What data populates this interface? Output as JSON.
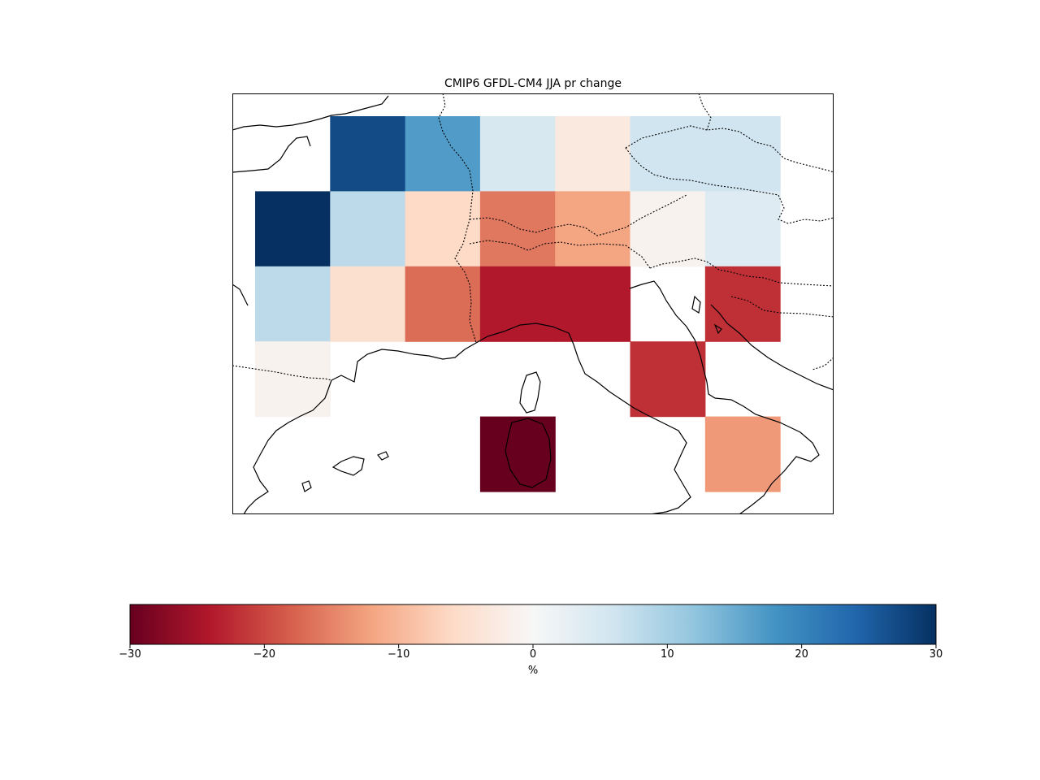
{
  "chart_data": {
    "type": "heatmap",
    "title": "CMIP6 GFDL-CM4 JJA pr change",
    "colorbar": {
      "label": "%",
      "vmin": -30,
      "vmax": 30,
      "ticks": [
        -30,
        -20,
        -10,
        0,
        10,
        20,
        30
      ],
      "tick_labels": [
        "−30",
        "−20",
        "−10",
        "0",
        "10",
        "20",
        "30"
      ],
      "colormap": "RdBu",
      "orientation": "horizontal",
      "placement": "bottom"
    },
    "grid_note": "7 columns x 5 rows (rows top to bottom); null = no data",
    "cells": [
      [
        null,
        27,
        17,
        5,
        -3,
        6,
        6
      ],
      [
        30,
        8,
        -6,
        -16,
        -12,
        -1,
        4
      ],
      [
        8,
        -5,
        -17,
        -24,
        -24,
        null,
        -22
      ],
      [
        -1,
        null,
        null,
        null,
        null,
        -22,
        null
      ],
      [
        null,
        null,
        null,
        -30,
        null,
        null,
        -13
      ]
    ],
    "basemap": {
      "features": [
        "coastlines",
        "borders"
      ],
      "border_style": "dotted"
    }
  }
}
